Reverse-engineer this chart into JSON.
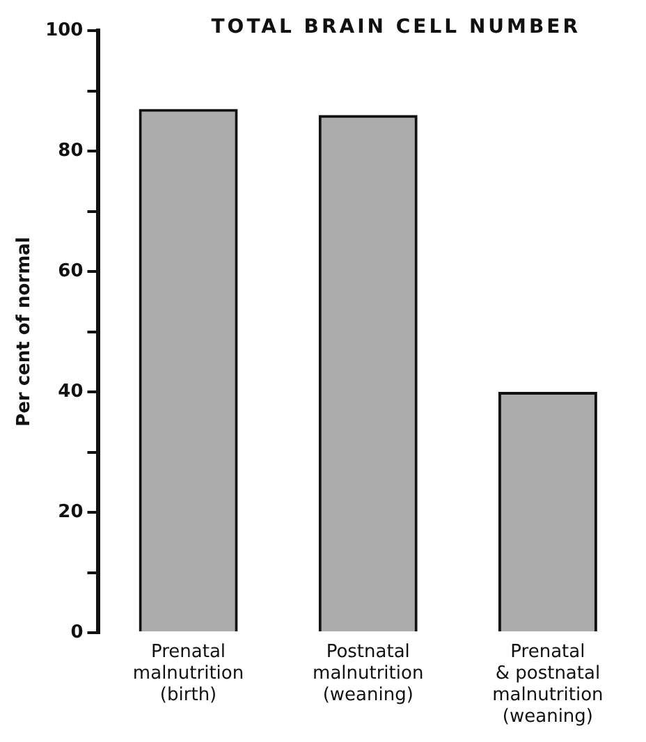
{
  "chart_data": {
    "type": "bar",
    "title": "TOTAL BRAIN CELL NUMBER",
    "ylabel": "Per cent of normal",
    "categories": [
      "Prenatal\nmalnutrition\n(birth)",
      "Postnatal\nmalnutrition\n(weaning)",
      "Prenatal\n& postnatal\nmalnutrition\n(weaning)"
    ],
    "values": [
      87,
      86,
      40
    ],
    "color": "#111111",
    "ylim": [
      0,
      100
    ],
    "yticks": [
      0,
      {
        "value": 10,
        "label": null
      },
      20,
      {
        "value": 30,
        "label": null
      },
      40,
      {
        "value": 50,
        "label": null
      },
      60,
      {
        "value": 70,
        "label": null
      },
      80,
      {
        "value": 90,
        "label": null
      },
      100
    ],
    "grid": false,
    "legend": false
  }
}
